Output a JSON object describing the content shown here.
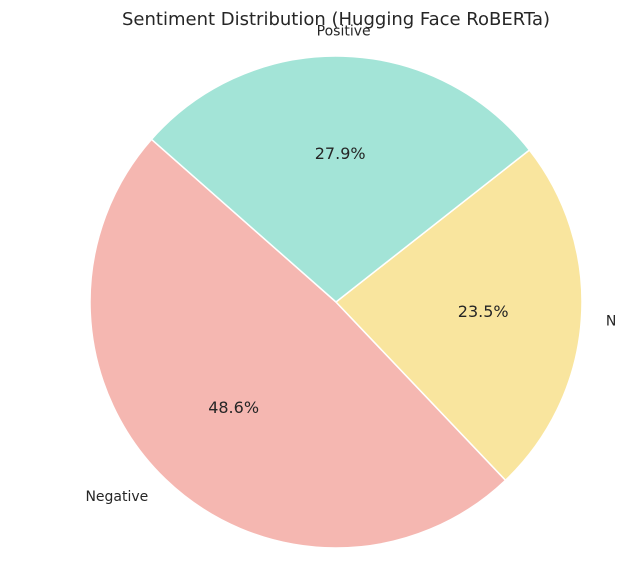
{
  "chart_data": {
    "type": "pie",
    "title": "Sentiment Distribution (Hugging Face RoBERTa)",
    "slices": [
      {
        "label": "Negative",
        "value": 48.6,
        "display": "48.6%",
        "color": "#f5b7b1"
      },
      {
        "label": "Neutral",
        "value": 23.5,
        "display": "23.5%",
        "color": "#f9e59e"
      },
      {
        "label": "Positive",
        "value": 27.9,
        "display": "27.9%",
        "color": "#a3e4d7"
      }
    ]
  }
}
